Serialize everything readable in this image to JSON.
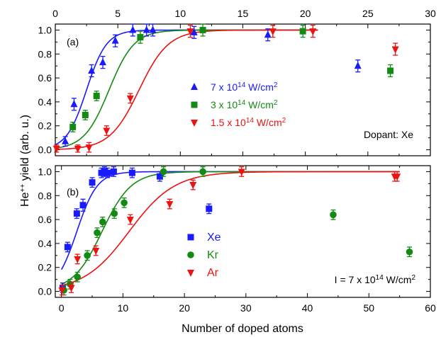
{
  "chart_data": [
    {
      "panel": "(a)",
      "type": "scatter",
      "xlabel": "",
      "x_top_ticks": [
        "0",
        "5",
        "10",
        "15",
        "20",
        "25",
        "30"
      ],
      "xlim": [
        0,
        30
      ],
      "ylim": [
        -0.05,
        1.05
      ],
      "y_ticks": [
        "0.0",
        "0.2",
        "0.4",
        "0.6",
        "0.8",
        "1.0"
      ],
      "annotation": "Dopant: Xe",
      "series": [
        {
          "name": "7 x 10^14 W/cm^2",
          "label_parts": [
            "7 x 10",
            "14",
            " W/cm",
            "2"
          ],
          "color": "#1a1aff",
          "marker": "triangle-up",
          "points": [
            [
              0.8,
              0.07
            ],
            [
              1.5,
              0.38
            ],
            [
              2.9,
              0.66
            ],
            [
              3.8,
              0.73
            ],
            [
              4.8,
              0.91
            ],
            [
              6.2,
              1.0
            ],
            [
              7.3,
              1.0
            ],
            [
              7.8,
              1.0
            ],
            [
              11.1,
              0.98
            ],
            [
              17.0,
              0.96
            ],
            [
              24.2,
              0.7
            ]
          ],
          "errors": [
            0.04,
            0.05,
            0.05,
            0.05,
            0.05,
            0.05,
            0.05,
            0.05,
            0.05,
            0.05,
            0.05
          ],
          "fit": {
            "x0": 2.5,
            "k": 1.25
          }
        },
        {
          "name": "3 x 10^14 W/cm^2",
          "label_parts": [
            "3 x 10",
            "14",
            " W/cm",
            "2"
          ],
          "color": "#138a13",
          "marker": "square",
          "points": [
            [
              1.4,
              0.19
            ],
            [
              2.4,
              0.29
            ],
            [
              3.3,
              0.45
            ],
            [
              6.8,
              0.94
            ],
            [
              11.8,
              1.0
            ],
            [
              19.8,
              0.99
            ],
            [
              26.8,
              0.66
            ]
          ],
          "errors": [
            0.04,
            0.04,
            0.04,
            0.05,
            0.05,
            0.05,
            0.05
          ],
          "fit": {
            "x0": 4.3,
            "k": 1.0
          }
        },
        {
          "name": "1.5 x 10^14 W/cm^2",
          "label_parts": [
            "1.5 x 10",
            "14",
            " W/cm",
            "2"
          ],
          "color": "#ee1111",
          "marker": "triangle-down",
          "points": [
            [
              0.1,
              0.01
            ],
            [
              1.8,
              0.01
            ],
            [
              2.7,
              0.02
            ],
            [
              4.1,
              0.16
            ],
            [
              6.0,
              0.43
            ],
            [
              10.8,
              0.99
            ],
            [
              17.4,
              0.99
            ],
            [
              20.6,
              0.99
            ],
            [
              27.2,
              0.84
            ]
          ],
          "errors": [
            0.03,
            0.03,
            0.04,
            0.04,
            0.04,
            0.05,
            0.05,
            0.05,
            0.05
          ],
          "fit": {
            "x0": 6.7,
            "k": 0.85
          }
        }
      ]
    },
    {
      "panel": "(b)",
      "type": "scatter",
      "xlabel": "Number of doped atoms",
      "x_bottom_ticks": [
        "0",
        "10",
        "20",
        "30",
        "40",
        "50",
        "60"
      ],
      "xlim": [
        -1,
        60
      ],
      "ylim": [
        -0.05,
        1.05
      ],
      "y_ticks": [
        "0.0",
        "0.2",
        "0.4",
        "0.6",
        "0.8",
        "1.0"
      ],
      "annotation_parts": [
        "I = 7 x 10",
        "14",
        " W/cm",
        "2"
      ],
      "series": [
        {
          "name": "Xe",
          "color": "#1a1aff",
          "marker": "square",
          "points": [
            [
              0.2,
              0.03
            ],
            [
              1.0,
              0.37
            ],
            [
              2.5,
              0.65
            ],
            [
              3.5,
              0.72
            ],
            [
              5.0,
              0.91
            ],
            [
              6.5,
              0.99
            ],
            [
              7.0,
              1.0
            ],
            [
              7.5,
              0.99
            ],
            [
              8.5,
              1.0
            ],
            [
              11.5,
              0.99
            ],
            [
              16.0,
              0.96
            ],
            [
              24.0,
              0.69
            ]
          ],
          "errors": [
            0.04,
            0.04,
            0.04,
            0.05,
            0.04,
            0.04,
            0.04,
            0.04,
            0.04,
            0.04,
            0.04,
            0.04
          ],
          "fit": {
            "x0": 2.5,
            "k": 0.6
          }
        },
        {
          "name": "Kr",
          "color": "#138a13",
          "marker": "circle",
          "points": [
            [
              0.4,
              0.01
            ],
            [
              1.4,
              0.06
            ],
            [
              2.6,
              0.12
            ],
            [
              4.2,
              0.3
            ],
            [
              5.8,
              0.49
            ],
            [
              6.7,
              0.58
            ],
            [
              8.6,
              0.65
            ],
            [
              10.2,
              0.74
            ],
            [
              16.6,
              1.0
            ],
            [
              23.0,
              1.0
            ],
            [
              44.2,
              0.64
            ],
            [
              56.6,
              0.33
            ]
          ],
          "errors": [
            0.04,
            0.04,
            0.04,
            0.04,
            0.04,
            0.04,
            0.04,
            0.04,
            0.04,
            0.04,
            0.04,
            0.04
          ],
          "fit": {
            "x0": 6.6,
            "k": 0.42
          }
        },
        {
          "name": "Ar",
          "color": "#ee1111",
          "marker": "triangle-down",
          "points": [
            [
              0.1,
              0.01
            ],
            [
              1.6,
              0.03
            ],
            [
              2.6,
              0.27
            ],
            [
              5.6,
              0.34
            ],
            [
              11.2,
              0.6
            ],
            [
              17.6,
              0.73
            ],
            [
              21.4,
              0.89
            ],
            [
              29.3,
              1.0
            ],
            [
              54.2,
              0.96
            ],
            [
              54.6,
              0.96
            ]
          ],
          "errors": [
            0.04,
            0.04,
            0.04,
            0.04,
            0.04,
            0.04,
            0.04,
            0.04,
            0.04,
            0.04
          ],
          "fit": {
            "x0": 11.0,
            "k": 0.27
          }
        }
      ]
    }
  ],
  "shared": {
    "ylabel_parts": [
      "He",
      "++",
      " yield (arb. u.)"
    ]
  }
}
